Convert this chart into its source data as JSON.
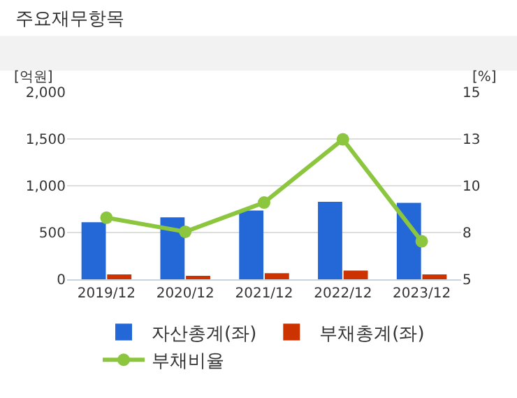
{
  "chart_data": {
    "type": "bar",
    "title": "주요재무항목",
    "ylabel": "[억원]",
    "y2label": "[%]",
    "categories": [
      "2019/12",
      "2020/12",
      "2021/12",
      "2022/12",
      "2023/12"
    ],
    "series": [
      {
        "name": "자산총계(좌)",
        "color": "#2468d8",
        "values": [
          610,
          663,
          736,
          829,
          817
        ]
      },
      {
        "name": "부채총계(좌)",
        "color": "#cc3300",
        "values": [
          53,
          37,
          65,
          93,
          53
        ]
      },
      {
        "name": "부채비율",
        "type": "line",
        "axis": "y2",
        "color": "#8cc63f",
        "values": [
          8.29,
          7.54,
          9.1,
          12.48,
          7.03
        ]
      }
    ],
    "ylim": [
      0,
      2000
    ],
    "yticks": [
      0,
      {
        "value": 500,
        "label": "500"
      },
      {
        "value": 1000,
        "label": "1,000"
      },
      {
        "value": 1500,
        "label": "1,500"
      },
      {
        "value": 2000,
        "label": "2,000"
      }
    ],
    "y2lim": [
      5,
      15
    ],
    "y2ticks": [
      5,
      {
        "value": 7.5,
        "label": "8"
      },
      10,
      {
        "value": 12.5,
        "label": "13"
      },
      15
    ],
    "grid": "y",
    "legend": "bottom",
    "marker": "circle"
  }
}
